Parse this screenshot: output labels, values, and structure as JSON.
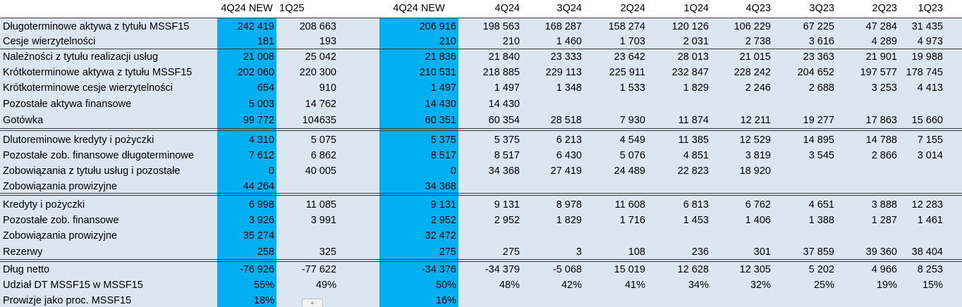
{
  "columns": [
    "4Q24 NEW",
    "1Q25",
    "4Q24 NEW",
    "4Q24",
    "3Q24",
    "2Q24",
    "1Q24",
    "4Q23",
    "3Q23",
    "2Q23",
    "1Q23"
  ],
  "rows": [
    {
      "label": "Długoterminowe aktywa z tytułu MSSF15",
      "values": [
        "242 419",
        "208 663",
        "206 916",
        "198 563",
        "168 287",
        "158 274",
        "120 126",
        "106 229",
        "67 225",
        "47 284",
        "31 435"
      ]
    },
    {
      "label": "Cesje wierzytelności",
      "values": [
        "181",
        "193",
        "210",
        "210",
        "1 460",
        "1 703",
        "2 031",
        "2 738",
        "3 616",
        "4 289",
        "4 973"
      ]
    },
    {
      "label": "Należności z tytułu realizacji usług",
      "values": [
        "21 008",
        "25 042",
        "21 836",
        "21 840",
        "23 333",
        "23 642",
        "28 013",
        "21 015",
        "23 363",
        "21 901",
        "19 988"
      ]
    },
    {
      "label": "Krótkoterminowe aktywa z tytułu MSSF15",
      "values": [
        "202 060",
        "220 300",
        "210 531",
        "218 885",
        "229 113",
        "225 911",
        "232 847",
        "228 242",
        "204 652",
        "197 577",
        "178 745"
      ]
    },
    {
      "label": "Krótkoterminowe cesje wierzytelności",
      "values": [
        "654",
        "910",
        "1 497",
        "1 497",
        "1 348",
        "1 533",
        "1 829",
        "2 246",
        "2 688",
        "3 253",
        "4 413"
      ]
    },
    {
      "label": "Pozostałe aktywa finansowe",
      "values": [
        "5 003",
        "14 762",
        "14 430",
        "14 430",
        "",
        "",
        "",
        "",
        "",
        "",
        ""
      ]
    },
    {
      "label": "Gotówka",
      "values": [
        "99 772",
        "104635",
        "60 351",
        "60 354",
        "28 518",
        "7 930",
        "11 874",
        "12 211",
        "19 277",
        "17 863",
        "15 660"
      ]
    },
    {
      "label": "Dlutoreminowe kredyty i pożyczki",
      "values": [
        "4 310",
        "5 075",
        "5 375",
        "5 375",
        "6 213",
        "4 549",
        "11 385",
        "12 529",
        "14 895",
        "14 788",
        "7 155"
      ]
    },
    {
      "label": "Pozostałe zob. finansowe długoterminowe",
      "values": [
        "7 612",
        "6 862",
        "8 517",
        "8 517",
        "6 430",
        "5 076",
        "4 851",
        "3 819",
        "3 545",
        "2 866",
        "3 014"
      ]
    },
    {
      "label": "Zobowiązania z tytułu usług i pozostałe",
      "values": [
        "0",
        "40 005",
        "0",
        "34 368",
        "27 419",
        "24 489",
        "22 823",
        "18 920",
        "",
        "",
        ""
      ]
    },
    {
      "label": "Zobowiązania prowizyjne",
      "values": [
        "44 264",
        "",
        "34 368",
        "",
        "",
        "",
        "",
        "",
        "",
        "",
        ""
      ]
    },
    {
      "label": "Kredyty i pożyczki",
      "values": [
        "6 998",
        "11 085",
        "9 131",
        "9 131",
        "8 978",
        "11 608",
        "6 813",
        "6 762",
        "4 651",
        "3 888",
        "12 283"
      ]
    },
    {
      "label": "Pozostałe zob. finansowe",
      "values": [
        "3 926",
        "3 991",
        "2 952",
        "2 952",
        "1 829",
        "1 716",
        "1 453",
        "1 406",
        "1 388",
        "1 287",
        "1 461"
      ]
    },
    {
      "label": "Zobowiązania prowizyjne",
      "values": [
        "35 274",
        "",
        "32 472",
        "",
        "",
        "",
        "",
        "",
        "",
        "",
        ""
      ]
    },
    {
      "label": "Rezerwy",
      "values": [
        "258",
        "325",
        "275",
        "275",
        "3",
        "108",
        "236",
        "301",
        "37 859",
        "39 360",
        "38 404"
      ]
    },
    {
      "label": "Dług netto",
      "values": [
        "-76 926",
        "-77 622",
        "-34 376",
        "-34 379",
        "-5 068",
        "15 019",
        "12 628",
        "12 305",
        "5 202",
        "4 966",
        "8 253"
      ]
    },
    {
      "label": "Udział DT MSSF15 w MSSF15",
      "values": [
        "55%",
        "49%",
        "50%",
        "48%",
        "42%",
        "41%",
        "34%",
        "32%",
        "25%",
        "19%",
        "15%"
      ]
    },
    {
      "label": "Prowizje jako proc. MSSF15",
      "values": [
        "18%",
        "",
        "16%",
        "",
        "",
        "",
        "",
        "",
        "",
        "",
        ""
      ]
    }
  ],
  "paste_options_icon": "plus-icon",
  "colors": {
    "highlight": "#00b0f0",
    "background": "#dce6f1",
    "header_background": "#ffffff"
  }
}
